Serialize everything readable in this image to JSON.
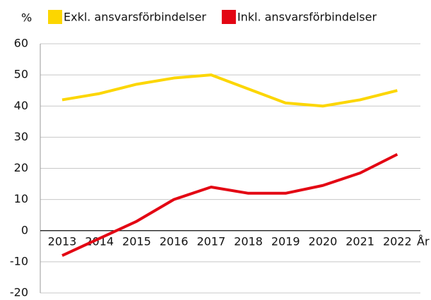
{
  "chart_data": {
    "type": "line",
    "y_label": "%",
    "x_label": "År",
    "categories": [
      "2013",
      "2014",
      "2015",
      "2016",
      "2017",
      "2018",
      "2019",
      "2020",
      "2021",
      "2022"
    ],
    "series": [
      {
        "name": "Exkl. ansvarsförbindelser",
        "color": "#fcd600",
        "values": [
          42,
          44,
          47,
          49,
          50,
          45.5,
          41,
          40,
          42,
          45
        ]
      },
      {
        "name": "Inkl. ansvarsförbindelser",
        "color": "#e30613",
        "values": [
          -8,
          -2.5,
          3,
          10,
          14,
          12,
          12,
          14.5,
          18.5,
          24.5
        ]
      }
    ],
    "ylim": [
      -20,
      60
    ],
    "yticks": [
      -20,
      -10,
      0,
      10,
      20,
      30,
      40,
      50,
      60
    ],
    "grid": true,
    "legend": "top"
  }
}
